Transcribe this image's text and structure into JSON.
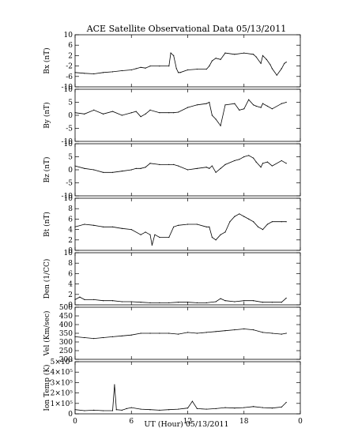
{
  "title": "ACE Satellite Observational Data   05/13/2011",
  "xlabel": "UT (Hour)   05/13/2011",
  "x_ticks": [
    "0",
    "6",
    "12",
    "18",
    "0"
  ],
  "chart_data": [
    {
      "type": "line",
      "ylabel": "Bx (nT)",
      "ylim": [
        -10,
        10
      ],
      "y_ticks": [
        "10",
        "6",
        "2",
        "-2",
        "-6",
        "-10"
      ],
      "y_tick_values": [
        10,
        6,
        2,
        -2,
        -6,
        -10
      ],
      "x": [
        0,
        1,
        2,
        3,
        4,
        5,
        6,
        6.5,
        7,
        7.5,
        8,
        9,
        10,
        10.2,
        10.5,
        10.8,
        11,
        11.2,
        12,
        13,
        14,
        14.3,
        14.6,
        15,
        15.5,
        16,
        17,
        18,
        19,
        19.3,
        19.8,
        20,
        20.4,
        20.8,
        21,
        21.5,
        22,
        22.3,
        22.5
      ],
      "values": [
        -4.5,
        -4.8,
        -5,
        -4.5,
        -4.2,
        -3.8,
        -3.5,
        -3,
        -2.5,
        -2.8,
        -2,
        -2,
        -2,
        3,
        2,
        -3,
        -4.5,
        -4.5,
        -3.5,
        -3.2,
        -3.2,
        -2,
        0,
        1,
        0.5,
        3,
        2.5,
        3,
        2.5,
        1.5,
        -1,
        2,
        0.5,
        -1.5,
        -3,
        -5.5,
        -3,
        -1,
        -0.5
      ]
    },
    {
      "type": "line",
      "ylabel": "By (nT)",
      "ylim": [
        -10,
        10
      ],
      "y_ticks": [
        "10",
        "5",
        "0",
        "-5",
        "-10"
      ],
      "y_tick_values": [
        10,
        5,
        0,
        -5,
        -10
      ],
      "x": [
        0,
        1,
        2,
        3,
        4,
        5,
        6,
        6.5,
        7,
        7.5,
        8,
        9,
        10,
        10.5,
        11,
        12,
        13,
        14,
        14.3,
        14.6,
        15,
        15.5,
        16,
        17,
        17.5,
        18,
        18.5,
        19,
        19.3,
        19.8,
        20,
        20.5,
        21,
        22,
        22.5
      ],
      "values": [
        1,
        0.5,
        2,
        0.5,
        1.5,
        0,
        1,
        1.5,
        -0.5,
        0.5,
        2,
        1,
        1,
        1,
        1.2,
        3,
        4,
        4.5,
        5,
        0,
        -1.5,
        -4,
        4,
        4.5,
        2,
        2.5,
        6,
        4,
        3.5,
        3,
        4.5,
        3.5,
        2.5,
        4.5,
        5
      ]
    },
    {
      "type": "line",
      "ylabel": "Bz (nT)",
      "ylim": [
        -10,
        10
      ],
      "y_ticks": [
        "10",
        "5",
        "0",
        "-5",
        "-10"
      ],
      "y_tick_values": [
        10,
        5,
        0,
        -5,
        -10
      ],
      "x": [
        0,
        1,
        2,
        3,
        4,
        5,
        6,
        6.5,
        7,
        7.5,
        8,
        9,
        10,
        10.5,
        11,
        12,
        13,
        14,
        14.3,
        14.6,
        15,
        15.5,
        16,
        17,
        17.5,
        18,
        18.5,
        19,
        19.3,
        19.8,
        20,
        20.5,
        21,
        22,
        22.5
      ],
      "values": [
        1.5,
        0.5,
        0,
        -1,
        -1,
        -0.5,
        0,
        0.5,
        0.5,
        1,
        2.5,
        2,
        2,
        2,
        1.5,
        0,
        0.5,
        1,
        0.5,
        1.5,
        -1,
        0.5,
        2,
        3.5,
        4,
        5,
        5.5,
        4.5,
        3,
        1,
        2.5,
        3,
        1.5,
        3.5,
        2.5
      ]
    },
    {
      "type": "line",
      "ylabel": "Bt (nT)",
      "ylim": [
        0,
        10
      ],
      "y_ticks": [
        "10",
        "8",
        "6",
        "4",
        "2",
        "0"
      ],
      "y_tick_values": [
        10,
        8,
        6,
        4,
        2,
        0
      ],
      "x": [
        0,
        1,
        2,
        3,
        4,
        5,
        6,
        7,
        7.5,
        8,
        8.2,
        8.5,
        9,
        10,
        10.5,
        11,
        12,
        13,
        14,
        14.3,
        14.6,
        15,
        15.5,
        16,
        16.5,
        17,
        17.5,
        18,
        18.5,
        19,
        19.5,
        20,
        20.5,
        21,
        22,
        22.5
      ],
      "values": [
        4.5,
        5,
        4.8,
        4.5,
        4.5,
        4.2,
        4,
        3,
        3.5,
        3,
        1,
        3,
        2.5,
        2.5,
        4.5,
        4.8,
        5,
        5,
        4.5,
        4.5,
        2.5,
        2,
        3,
        3.5,
        5.5,
        6.5,
        7,
        6.5,
        6,
        5.5,
        4.5,
        4,
        5,
        5.5,
        5.5,
        5.5
      ]
    },
    {
      "type": "line",
      "ylabel": "Den (1/CC)",
      "ylim": [
        0,
        10
      ],
      "y_ticks": [
        "10",
        "8",
        "6",
        "4",
        "2",
        "0"
      ],
      "y_tick_values": [
        10,
        8,
        6,
        4,
        2,
        0
      ],
      "x": [
        0,
        0.5,
        1,
        2,
        3,
        4,
        5,
        6,
        7,
        8,
        9,
        10,
        11,
        12,
        13,
        14,
        15,
        15.5,
        16,
        17,
        18,
        19,
        20,
        21,
        22,
        22.5
      ],
      "values": [
        1,
        1.5,
        1,
        1,
        0.8,
        0.8,
        0.6,
        0.6,
        0.5,
        0.4,
        0.4,
        0.4,
        0.5,
        0.5,
        0.4,
        0.4,
        0.6,
        1.2,
        0.8,
        0.6,
        0.8,
        0.8,
        0.5,
        0.5,
        0.5,
        1.3
      ]
    },
    {
      "type": "line",
      "ylabel": "Vel (Km/sec)",
      "ylim": [
        200,
        500
      ],
      "y_ticks": [
        "500",
        "450",
        "400",
        "350",
        "300",
        "250",
        "200"
      ],
      "y_tick_values": [
        500,
        450,
        400,
        350,
        300,
        250,
        200
      ],
      "x": [
        0,
        1,
        2,
        3,
        4,
        5,
        6,
        7,
        8,
        9,
        10,
        11,
        12,
        13,
        14,
        15,
        16,
        17,
        18,
        19,
        20,
        21,
        22,
        22.5
      ],
      "values": [
        330,
        325,
        320,
        325,
        330,
        335,
        340,
        350,
        350,
        350,
        350,
        345,
        355,
        350,
        355,
        360,
        365,
        370,
        375,
        370,
        355,
        350,
        345,
        350
      ]
    },
    {
      "type": "line",
      "ylabel": "Ion Temp (K)",
      "ylim": [
        0,
        500000
      ],
      "y_ticks": [
        "5×10⁵",
        "4×10⁵",
        "3×10⁵",
        "2×10⁵",
        "1×10⁵",
        "0"
      ],
      "y_tick_values": [
        500000,
        400000,
        300000,
        200000,
        100000,
        0
      ],
      "x": [
        0,
        1,
        2,
        3,
        4,
        4.2,
        4.4,
        5,
        5.5,
        6,
        7,
        8,
        9,
        10,
        11,
        12,
        12.5,
        13,
        14,
        15,
        16,
        17,
        18,
        19,
        20,
        21,
        22,
        22.5
      ],
      "values": [
        40000,
        30000,
        35000,
        30000,
        30000,
        280000,
        40000,
        35000,
        50000,
        60000,
        45000,
        40000,
        35000,
        40000,
        45000,
        55000,
        120000,
        50000,
        45000,
        50000,
        60000,
        55000,
        60000,
        70000,
        60000,
        55000,
        65000,
        110000
      ]
    }
  ]
}
